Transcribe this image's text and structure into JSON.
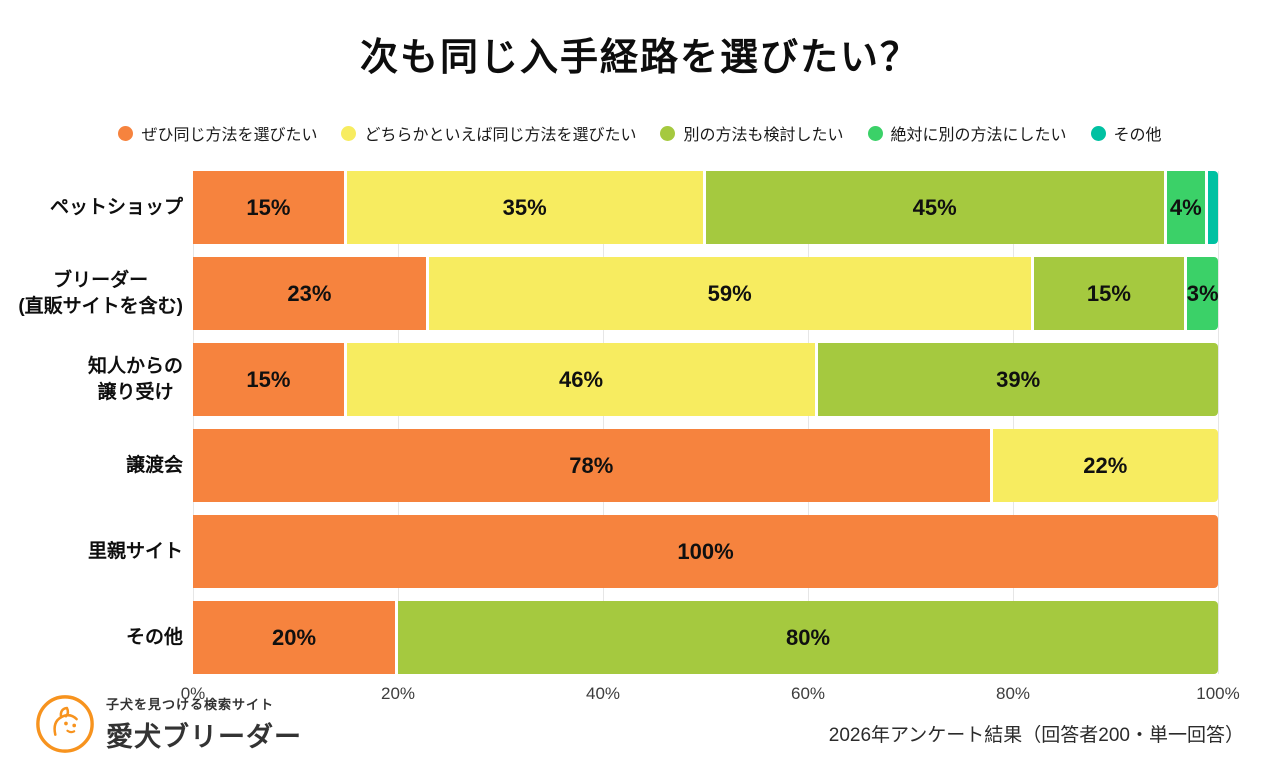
{
  "chart_data": {
    "type": "bar",
    "stacked": true,
    "orientation": "horizontal",
    "title": "次も同じ入手経路を選びたい？",
    "unit": "%",
    "xlim": [
      0,
      100
    ],
    "x_ticks": [
      "0%",
      "20%",
      "40%",
      "60%",
      "80%",
      "100%"
    ],
    "grid": true,
    "legend_position": "top",
    "series": [
      {
        "name": "ぜひ同じ方法を選びたい",
        "color": "#F6833E"
      },
      {
        "name": "どちらかといえば同じ方法を選びたい",
        "color": "#F7EC60"
      },
      {
        "name": "別の方法も検討したい",
        "color": "#A5C93F"
      },
      {
        "name": "絶対に別の方法にしたい",
        "color": "#3BD168"
      },
      {
        "name": "その他",
        "color": "#00C1A2"
      }
    ],
    "categories": [
      "ペットショップ",
      "ブリーダー(直販サイトを含む)",
      "知人からの譲り受け",
      "譲渡会",
      "里親サイト",
      "その他"
    ],
    "rows": [
      {
        "category_lines": [
          "ペットショップ"
        ],
        "segments": [
          {
            "series": 0,
            "value": 15,
            "label": "15%"
          },
          {
            "series": 1,
            "value": 35,
            "label": "35%"
          },
          {
            "series": 2,
            "value": 45,
            "label": "45%"
          },
          {
            "series": 3,
            "value": 4,
            "label": "4%"
          },
          {
            "series": 4,
            "value": 1,
            "label": ""
          }
        ]
      },
      {
        "category_lines": [
          "ブリーダー",
          "(直販サイトを含む)"
        ],
        "segments": [
          {
            "series": 0,
            "value": 23,
            "label": "23%"
          },
          {
            "series": 1,
            "value": 59,
            "label": "59%"
          },
          {
            "series": 2,
            "value": 15,
            "label": "15%"
          },
          {
            "series": 3,
            "value": 3,
            "label": "3%"
          }
        ]
      },
      {
        "category_lines": [
          "知人からの",
          "譲り受け"
        ],
        "segments": [
          {
            "series": 0,
            "value": 15,
            "label": "15%"
          },
          {
            "series": 1,
            "value": 46,
            "label": "46%"
          },
          {
            "series": 2,
            "value": 39,
            "label": "39%"
          }
        ]
      },
      {
        "category_lines": [
          "譲渡会"
        ],
        "segments": [
          {
            "series": 0,
            "value": 78,
            "label": "78%"
          },
          {
            "series": 1,
            "value": 22,
            "label": "22%"
          }
        ]
      },
      {
        "category_lines": [
          "里親サイト"
        ],
        "segments": [
          {
            "series": 0,
            "value": 100,
            "label": "100%"
          }
        ]
      },
      {
        "category_lines": [
          "その他"
        ],
        "segments": [
          {
            "series": 0,
            "value": 20,
            "label": "20%"
          },
          {
            "series": 2,
            "value": 80,
            "label": "80%"
          }
        ]
      }
    ]
  },
  "footer": {
    "tagline": "子犬を見つける検索サイト",
    "brand": "愛犬ブリーダー",
    "note": "2026年アンケート結果（回答者200・単一回答）",
    "logo_color": "#F7931E"
  }
}
